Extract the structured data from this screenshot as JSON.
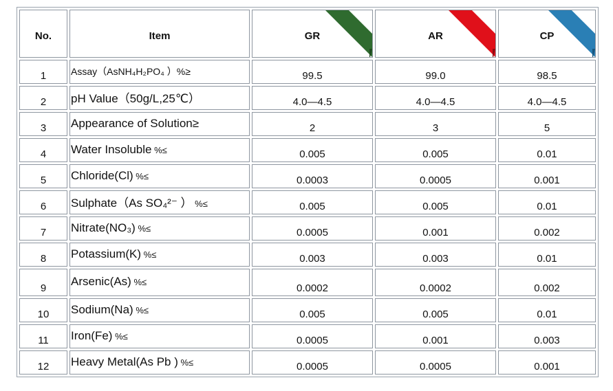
{
  "table": {
    "headers": {
      "no": "No.",
      "item": "Item",
      "grades": [
        {
          "label": "GR",
          "ribbon_color": "#2f6b2f",
          "tail_color": "#1e4a1e"
        },
        {
          "label": "AR",
          "ribbon_color": "#e0101a",
          "tail_color": "#8f0a10"
        },
        {
          "label": "CP",
          "ribbon_color": "#2a7fb5",
          "tail_color": "#17557d"
        }
      ]
    },
    "rows": [
      {
        "no": "1",
        "item": "Assay（AsNH₄H₂PO₄ ）%≥",
        "gr": "99.5",
        "ar": "99.0",
        "cp": "98.5"
      },
      {
        "no": "2",
        "item": "pH Value（50g/L,25℃）",
        "gr": "4.0—4.5",
        "ar": "4.0—4.5",
        "cp": "4.0—4.5"
      },
      {
        "no": "3",
        "item": "Appearance of Solution≥",
        "gr": "2",
        "ar": "3",
        "cp": "5"
      },
      {
        "no": "4",
        "item": "Water Insoluble",
        "unit": " %≤",
        "gr": "0.005",
        "ar": "0.005",
        "cp": "0.01"
      },
      {
        "no": "5",
        "item": "Chloride(Cl)",
        "unit": " %≤",
        "gr": "0.0003",
        "ar": "0.0005",
        "cp": "0.001"
      },
      {
        "no": "6",
        "item": "Sulphate（As SO₄²⁻ ）",
        "unit": " %≤",
        "gr": "0.005",
        "ar": "0.005",
        "cp": "0.01"
      },
      {
        "no": "7",
        "item": "Nitrate(NO₃)",
        "unit": " %≤",
        "gr": "0.0005",
        "ar": "0.001",
        "cp": "0.002"
      },
      {
        "no": "8",
        "item": "Potassium(K)",
        "unit": " %≤",
        "gr": "0.003",
        "ar": "0.003",
        "cp": "0.01"
      },
      {
        "no": "9",
        "item": "Arsenic(As)",
        "unit": " %≤",
        "gr": "0.0002",
        "ar": "0.0002",
        "cp": "0.002"
      },
      {
        "no": "10",
        "item": "Sodium(Na)",
        "unit": " %≤",
        "gr": "0.005",
        "ar": "0.005",
        "cp": "0.01"
      },
      {
        "no": "11",
        "item": "Iron(Fe)",
        "unit": " %≤",
        "gr": "0.0005",
        "ar": "0.001",
        "cp": "0.003"
      },
      {
        "no": "12",
        "item": "Heavy Metal(As Pb )",
        "unit": " %≤",
        "gr": "0.0005",
        "ar": "0.0005",
        "cp": "0.001"
      }
    ]
  }
}
